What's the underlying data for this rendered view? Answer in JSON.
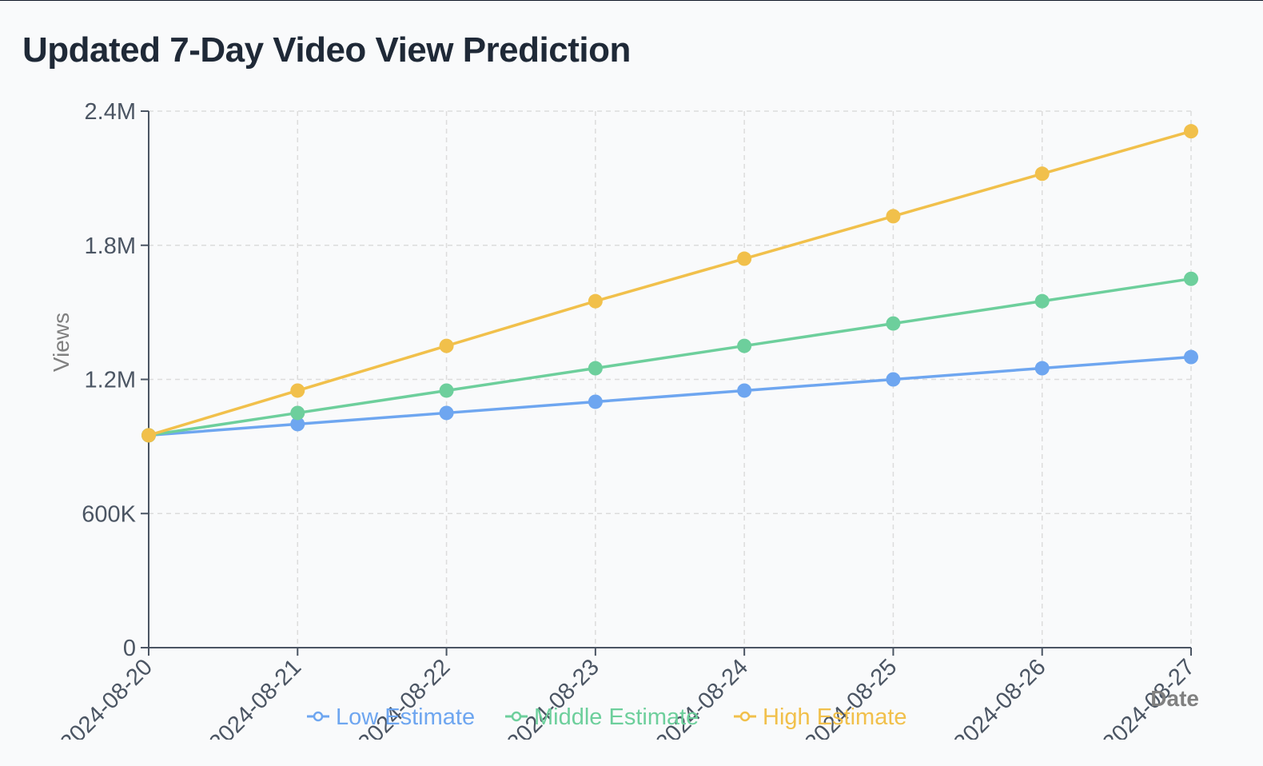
{
  "title": "Updated 7-Day Video View Prediction",
  "chart_data": {
    "type": "line",
    "title": "Updated 7-Day Video View Prediction",
    "xlabel": "Date",
    "ylabel": "Views",
    "x": [
      "2024-08-20",
      "2024-08-21",
      "2024-08-22",
      "2024-08-23",
      "2024-08-24",
      "2024-08-25",
      "2024-08-26",
      "2024-08-27"
    ],
    "ylim": [
      0,
      2400000
    ],
    "yticks": [
      0,
      600000,
      1200000,
      1800000,
      2400000
    ],
    "ytick_labels": [
      "0",
      "600K",
      "1.2M",
      "1.8M",
      "2.4M"
    ],
    "grid": true,
    "legend_position": "bottom",
    "series": [
      {
        "name": "Low Estimate",
        "color": "#6ea6f0",
        "values": [
          950000,
          1000000,
          1050000,
          1100000,
          1150000,
          1200000,
          1250000,
          1300000
        ]
      },
      {
        "name": "Middle Estimate",
        "color": "#6dcf9c",
        "values": [
          950000,
          1050000,
          1150000,
          1250000,
          1350000,
          1450000,
          1550000,
          1650000
        ]
      },
      {
        "name": "High Estimate",
        "color": "#f1c04b",
        "values": [
          950000,
          1150000,
          1350000,
          1550000,
          1740000,
          1930000,
          2120000,
          2310000
        ]
      }
    ]
  }
}
